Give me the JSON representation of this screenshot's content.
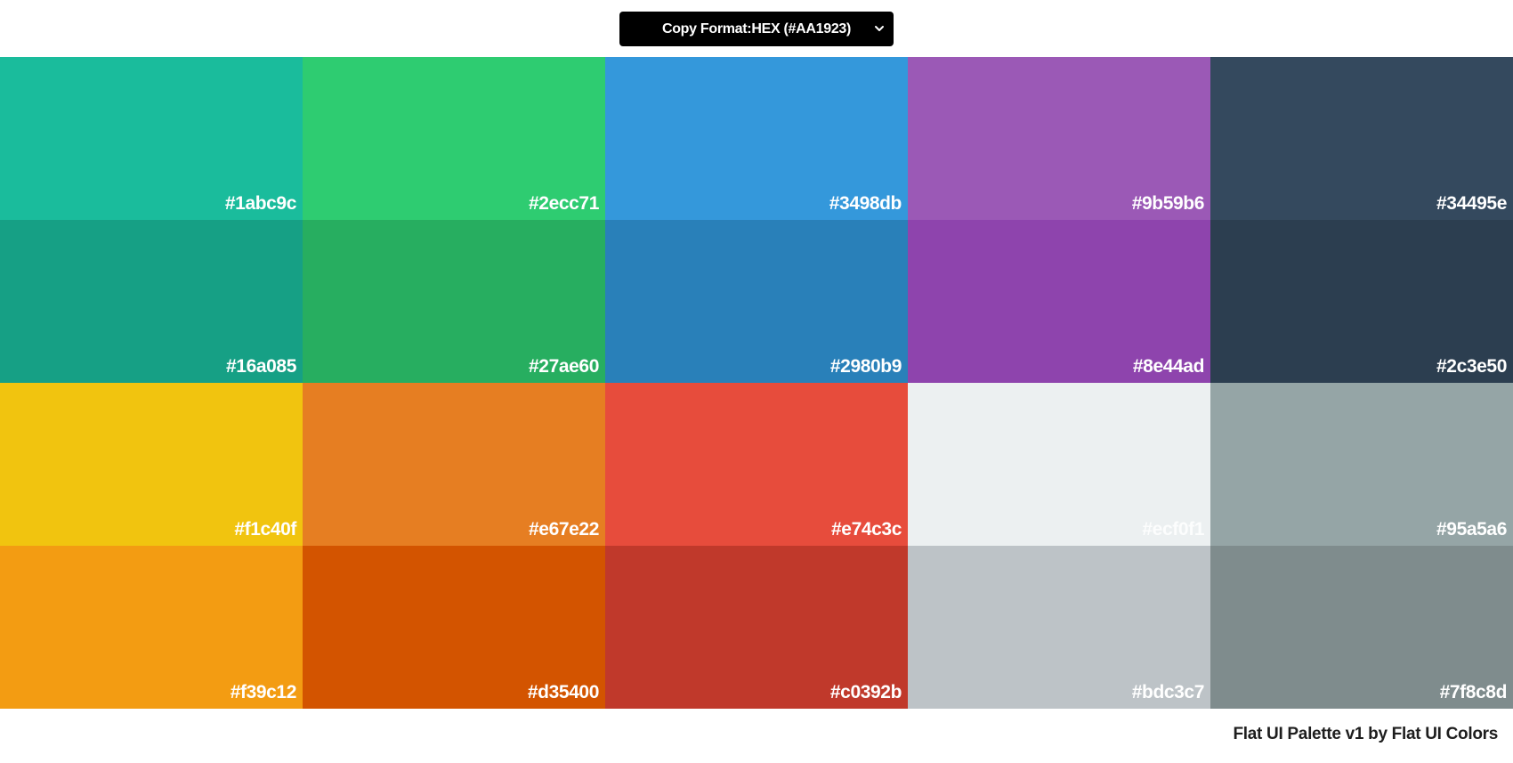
{
  "copy_format": {
    "label": "Copy Format:",
    "selected": "HEX (#AA1923)",
    "icon": "chevron-down-icon"
  },
  "swatches": [
    {
      "hex": "#1abc9c",
      "color": "#1abc9c"
    },
    {
      "hex": "#2ecc71",
      "color": "#2ecc71"
    },
    {
      "hex": "#3498db",
      "color": "#3498db"
    },
    {
      "hex": "#9b59b6",
      "color": "#9b59b6"
    },
    {
      "hex": "#34495e",
      "color": "#34495e"
    },
    {
      "hex": "#16a085",
      "color": "#16a085"
    },
    {
      "hex": "#27ae60",
      "color": "#27ae60"
    },
    {
      "hex": "#2980b9",
      "color": "#2980b9"
    },
    {
      "hex": "#8e44ad",
      "color": "#8e44ad"
    },
    {
      "hex": "#2c3e50",
      "color": "#2c3e50"
    },
    {
      "hex": "#f1c40f",
      "color": "#f1c40f"
    },
    {
      "hex": "#e67e22",
      "color": "#e67e22"
    },
    {
      "hex": "#e74c3c",
      "color": "#e74c3c"
    },
    {
      "hex": "#ecf0f1",
      "color": "#ecf0f1"
    },
    {
      "hex": "#95a5a6",
      "color": "#95a5a6"
    },
    {
      "hex": "#f39c12",
      "color": "#f39c12"
    },
    {
      "hex": "#d35400",
      "color": "#d35400"
    },
    {
      "hex": "#c0392b",
      "color": "#c0392b"
    },
    {
      "hex": "#bdc3c7",
      "color": "#bdc3c7"
    },
    {
      "hex": "#7f8c8d",
      "color": "#7f8c8d"
    }
  ],
  "footer": {
    "credit": "Flat UI Palette v1 by Flat UI Colors"
  }
}
